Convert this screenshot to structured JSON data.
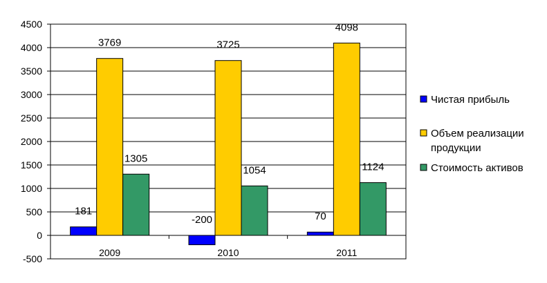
{
  "chart_data": {
    "type": "bar",
    "categories": [
      "2009",
      "2010",
      "2011"
    ],
    "series": [
      {
        "name": "Чистая прибыль",
        "values": [
          181,
          -200,
          70
        ],
        "color": "#0000ff"
      },
      {
        "name": "Объем реализации продукции",
        "values": [
          3769,
          3725,
          4098
        ],
        "color": "#ffcc00"
      },
      {
        "name": "Стоимость активов",
        "values": [
          1305,
          1054,
          1124
        ],
        "color": "#339966"
      }
    ],
    "y_ticks": [
      "-500",
      "0",
      "500",
      "1000",
      "1500",
      "2000",
      "2500",
      "3000",
      "3500",
      "4000",
      "4500"
    ],
    "ylim": [
      -500,
      4500
    ],
    "grid": true,
    "legend": "right",
    "legend_lines": [
      [
        "Чистая прибыль"
      ],
      [
        "Объем реализации",
        "продукции"
      ],
      [
        "Стоимость активов"
      ]
    ]
  }
}
